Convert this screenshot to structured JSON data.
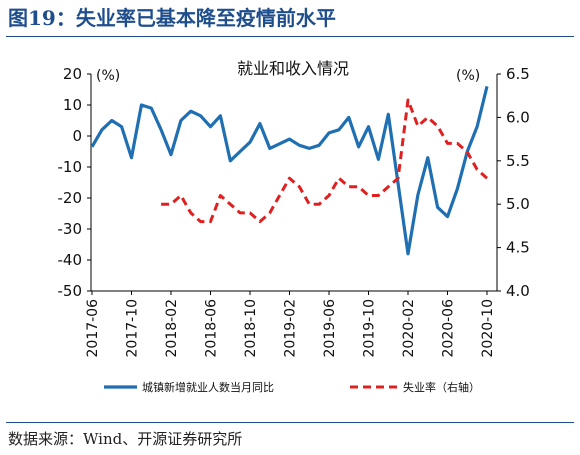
{
  "figure": {
    "title": "图19：失业率已基本降至疫情前水平",
    "source": "数据来源：Wind、开源证券研究所"
  },
  "chart_data": {
    "type": "line",
    "title": "就业和收入情况",
    "left_unit": "(%)",
    "right_unit": "(%)",
    "ylim_left": [
      -50,
      20
    ],
    "ylim_right": [
      4.0,
      6.5
    ],
    "yticks_left": [
      "20",
      "10",
      "0",
      "-10",
      "-20",
      "-30",
      "-40",
      "-50"
    ],
    "yticks_right": [
      "6.5",
      "6.0",
      "5.5",
      "5.0",
      "4.5",
      "4.0"
    ],
    "x": [
      "2017-06",
      "2017-07",
      "2017-08",
      "2017-09",
      "2017-10",
      "2017-11",
      "2017-12",
      "2018-01",
      "2018-02",
      "2018-03",
      "2018-04",
      "2018-05",
      "2018-06",
      "2018-07",
      "2018-08",
      "2018-09",
      "2018-10",
      "2018-11",
      "2018-12",
      "2019-01",
      "2019-02",
      "2019-03",
      "2019-04",
      "2019-05",
      "2019-06",
      "2019-07",
      "2019-08",
      "2019-09",
      "2019-10",
      "2019-11",
      "2019-12",
      "2020-01",
      "2020-02",
      "2020-03",
      "2020-04",
      "2020-05",
      "2020-06",
      "2020-07",
      "2020-08",
      "2020-09",
      "2020-10"
    ],
    "xtick_labels": [
      "2017-06",
      "2017-10",
      "2018-02",
      "2018-06",
      "2018-10",
      "2019-02",
      "2019-06",
      "2019-10",
      "2020-02",
      "2020-06",
      "2020-10"
    ],
    "series": [
      {
        "name": "城镇新增就业人数当月同比",
        "axis": "left",
        "color": "#1f6fb2",
        "style": "solid",
        "values": [
          -3.5,
          2,
          5,
          3,
          -7,
          10,
          9,
          2,
          -6,
          5,
          8,
          6.5,
          3,
          6.5,
          -8,
          -5,
          -2,
          4,
          -4,
          -2.5,
          -1,
          -3,
          -4,
          -3,
          1,
          2,
          6,
          -3.5,
          3,
          -7.5,
          7,
          null,
          -38,
          -19,
          -7,
          -23,
          -26,
          -17,
          -5,
          3,
          16
        ]
      },
      {
        "name": "失业率（右轴）",
        "axis": "right",
        "color": "#e02020",
        "style": "dashed",
        "values": [
          null,
          null,
          null,
          null,
          null,
          null,
          null,
          5.0,
          5.0,
          5.1,
          4.9,
          4.8,
          4.8,
          5.1,
          5.0,
          4.9,
          4.9,
          4.8,
          4.9,
          5.1,
          5.3,
          5.2,
          5.0,
          5.0,
          5.1,
          5.3,
          5.2,
          5.2,
          5.1,
          5.1,
          5.2,
          5.3,
          6.2,
          5.9,
          6.0,
          5.9,
          5.7,
          5.7,
          5.6,
          5.4,
          5.3
        ]
      }
    ],
    "legend_position": "bottom",
    "grid": false
  }
}
